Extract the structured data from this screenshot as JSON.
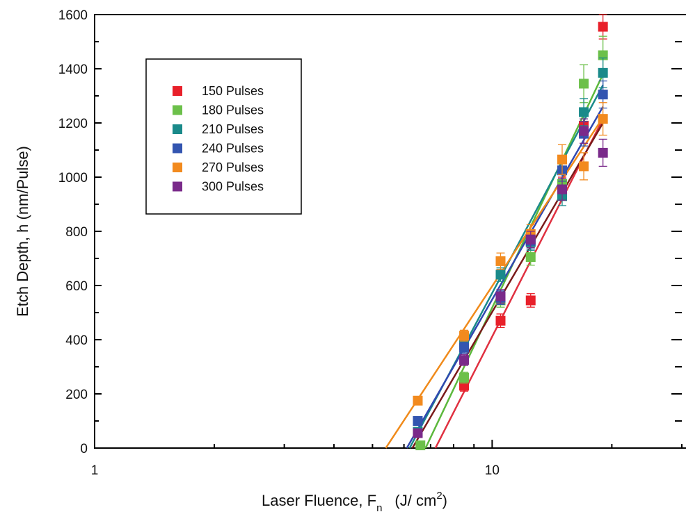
{
  "chart_data": {
    "type": "scatter",
    "x_scale": "log",
    "xlim": [
      1,
      30
    ],
    "ylim": [
      0,
      1600
    ],
    "grid": false,
    "legend_position": "top-left",
    "xlabel": "Laser Fluence, F",
    "xlabel_subscript": "n",
    "xlabel_units": "(J/ cm",
    "xlabel_units_sup": "2",
    "xlabel_units_close": ")",
    "ylabel": "Etch Depth, h (nm/Pulse)",
    "x_major_ticks": [
      1,
      10
    ],
    "x_major_labels": [
      "1",
      "10"
    ],
    "y_ticks": [
      0,
      200,
      400,
      600,
      800,
      1000,
      1200,
      1400,
      1600
    ],
    "y_tick_labels": [
      "0",
      "200",
      "400",
      "600",
      "800",
      "1000",
      "1200",
      "1400",
      "1600"
    ],
    "series": [
      {
        "name": "150 Pulses",
        "color": "#e8202a",
        "fit_color": "#e03040",
        "x": [
          8.5,
          10.5,
          12.5,
          15.0,
          17.0,
          19.0
        ],
        "y": [
          230,
          470,
          545,
          960,
          1190,
          1555
        ],
        "err": [
          20,
          25,
          25,
          40,
          40,
          45
        ],
        "fit": [
          [
            7.2,
            0
          ],
          [
            19.0,
            1215
          ]
        ]
      },
      {
        "name": "180 Pulses",
        "color": "#6cc04a",
        "fit_color": "#5cb83c",
        "x": [
          6.6,
          8.5,
          10.5,
          12.5,
          15.0,
          17.0,
          19.0
        ],
        "y": [
          10,
          260,
          545,
          705,
          975,
          1345,
          1450
        ],
        "err": [
          15,
          20,
          25,
          30,
          45,
          70,
          70
        ],
        "fit": [
          [
            6.8,
            0
          ],
          [
            19.0,
            1380
          ]
        ]
      },
      {
        "name": "210 Pulses",
        "color": "#1a8a8a",
        "fit_color": "#1a8a8a",
        "x": [
          6.5,
          8.5,
          10.5,
          12.5,
          15.0,
          17.0,
          19.0
        ],
        "y": [
          60,
          380,
          640,
          760,
          930,
          1240,
          1385
        ],
        "err": [
          15,
          20,
          25,
          30,
          35,
          50,
          55
        ],
        "fit": [
          [
            6.2,
            0
          ],
          [
            19.0,
            1340
          ]
        ]
      },
      {
        "name": "240 Pulses",
        "color": "#3355b0",
        "fit_color": "#3048b0",
        "x": [
          6.5,
          8.5,
          10.5,
          12.5,
          15.0,
          17.0,
          19.0
        ],
        "y": [
          100,
          370,
          555,
          765,
          1025,
          1160,
          1305
        ],
        "err": [
          15,
          20,
          25,
          30,
          40,
          45,
          50
        ],
        "fit": [
          [
            6.1,
            0
          ],
          [
            19.0,
            1260
          ]
        ]
      },
      {
        "name": "270 Pulses",
        "color": "#f28a1e",
        "fit_color": "#f08a1a",
        "x": [
          6.5,
          8.5,
          10.5,
          12.5,
          15.0,
          17.0,
          19.0
        ],
        "y": [
          175,
          415,
          690,
          790,
          1065,
          1040,
          1215
        ],
        "err": [
          15,
          20,
          30,
          35,
          55,
          50,
          60
        ],
        "fit": [
          [
            5.4,
            0
          ],
          [
            19.0,
            1220
          ]
        ]
      },
      {
        "name": "300 Pulses",
        "color": "#7a2a8a",
        "fit_color": "#7a1a1a",
        "x": [
          6.5,
          8.5,
          10.5,
          12.5,
          15.0,
          17.0,
          19.0
        ],
        "y": [
          55,
          325,
          560,
          770,
          955,
          1170,
          1090
        ],
        "err": [
          15,
          20,
          25,
          30,
          40,
          45,
          50
        ],
        "fit": [
          [
            6.3,
            0
          ],
          [
            19.0,
            1200
          ]
        ]
      }
    ]
  }
}
